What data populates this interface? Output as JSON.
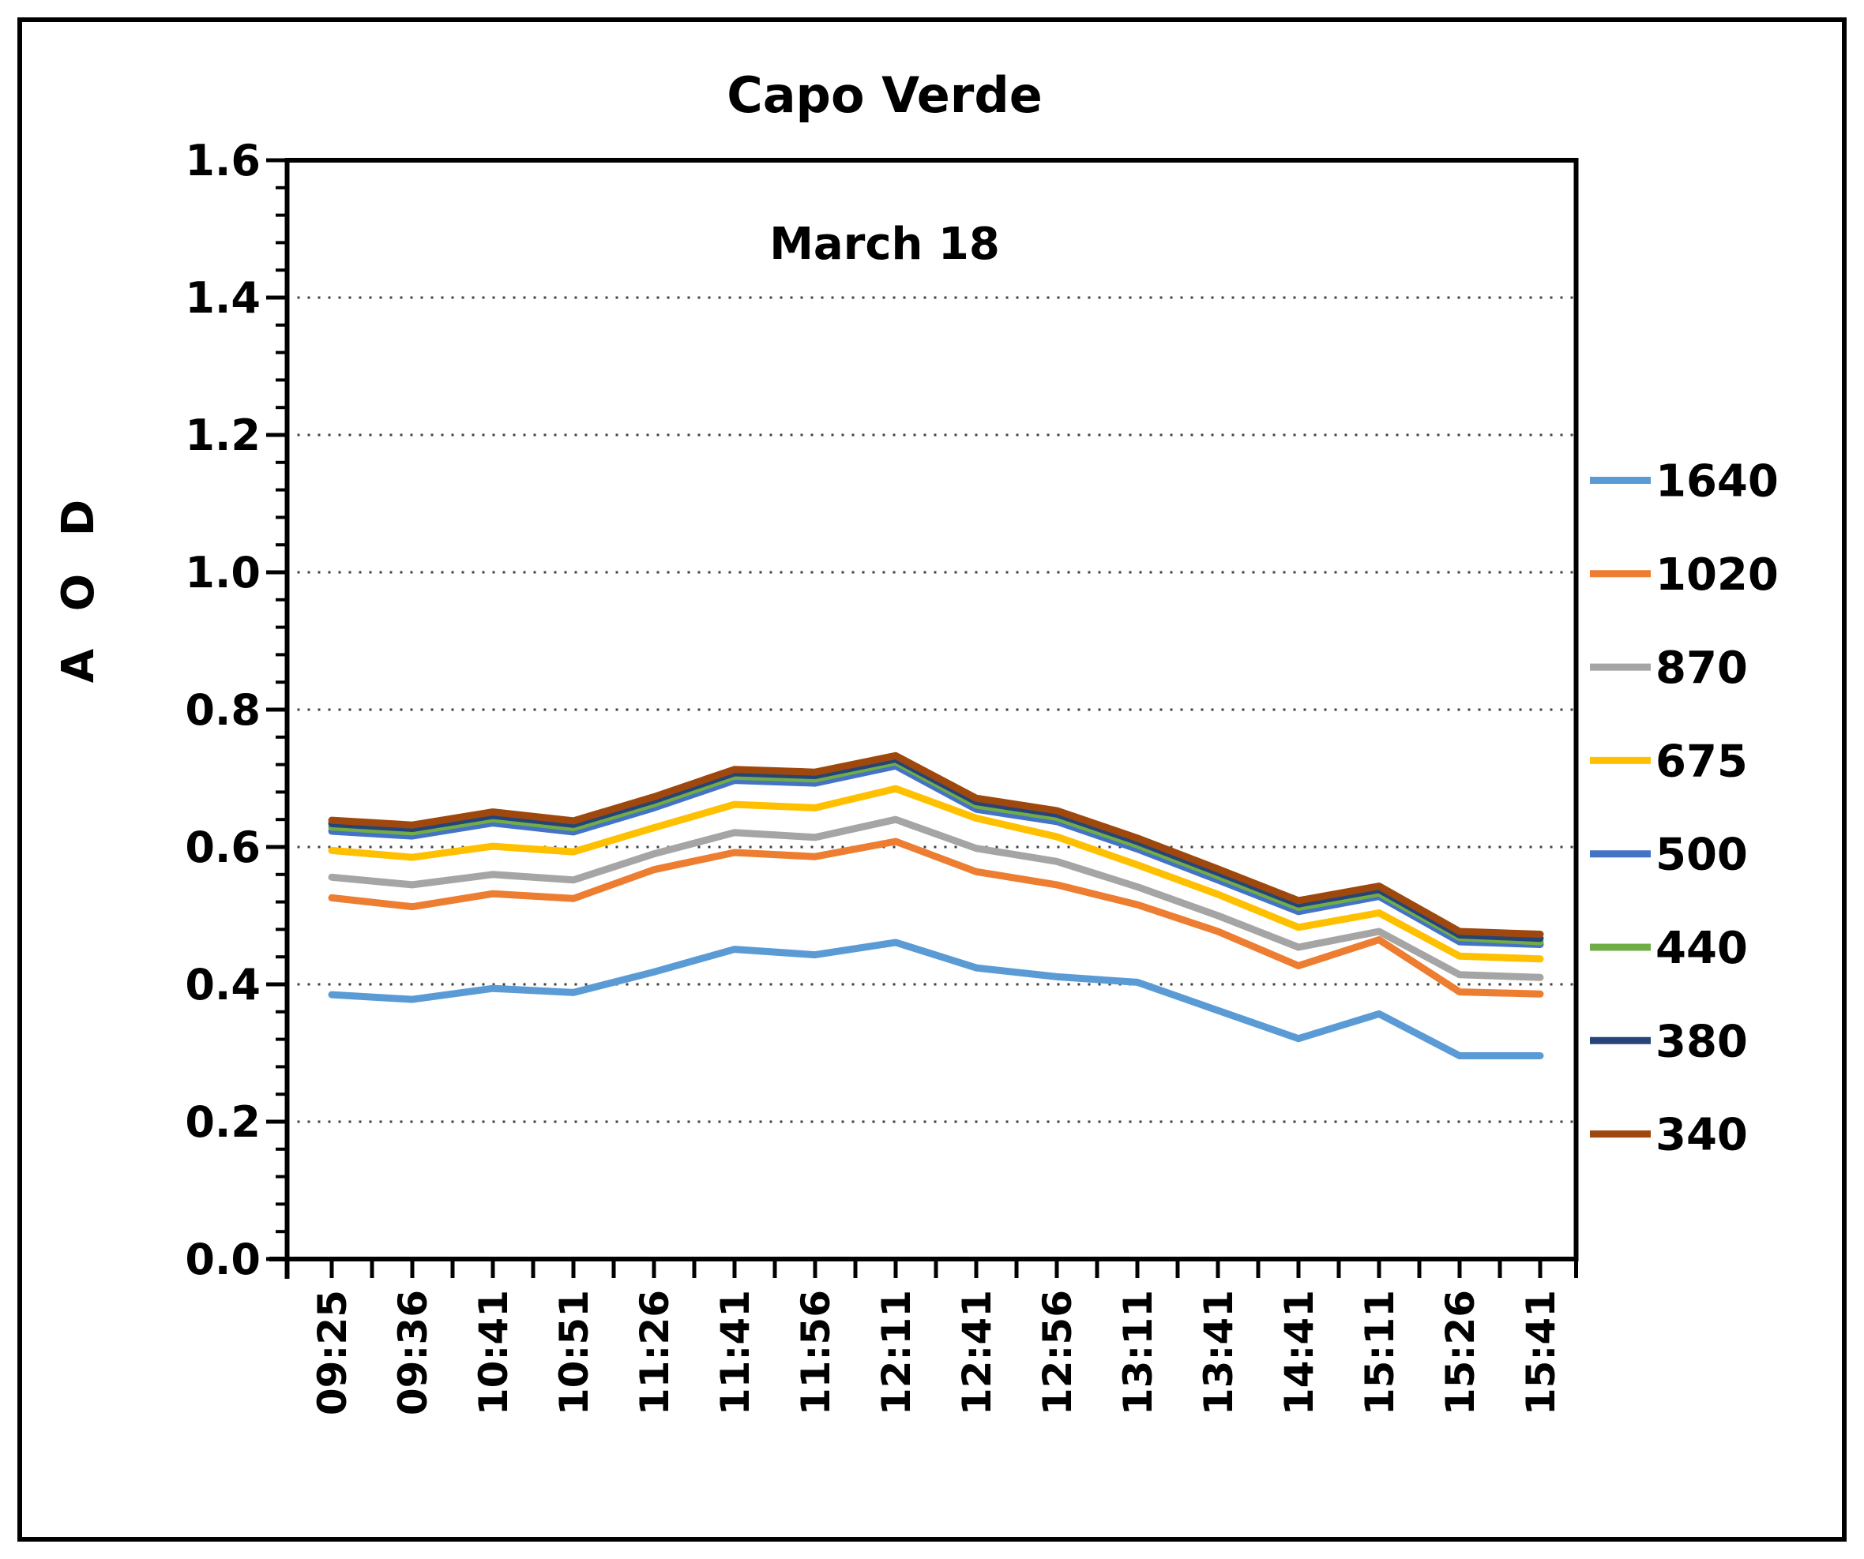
{
  "figure": {
    "title": "Capo Verde",
    "subtitle": "March 18",
    "y_axis_title": "A O D"
  },
  "chart_data": {
    "type": "line",
    "title": "Capo Verde",
    "subtitle": "March 18",
    "xlabel": "",
    "ylabel": "A O D",
    "ylim": [
      0.0,
      1.6
    ],
    "y_major_unit": 0.2,
    "y_minor_unit": 0.04,
    "y_tick_labels": [
      "0.0",
      "0.2",
      "0.4",
      "0.6",
      "0.8",
      "1.0",
      "1.2",
      "1.4",
      "1.6"
    ],
    "grid": "horizontal dotted lines at each 0.2",
    "legend_position": "right",
    "legend_entries": [
      "1640",
      "1020",
      "870",
      "675",
      "500",
      "440",
      "380",
      "340"
    ],
    "categories": [
      "09:25",
      "09:36",
      "10:41",
      "10:51",
      "11:26",
      "11:41",
      "11:56",
      "12:11",
      "12:41",
      "12:56",
      "13:11",
      "13:41",
      "14:41",
      "15:11",
      "15:26",
      "15:41"
    ],
    "series": [
      {
        "name": "1640",
        "color": "#5B9BD5",
        "values": [
          0.385,
          0.378,
          0.394,
          0.388,
          0.418,
          0.451,
          0.443,
          0.461,
          0.424,
          0.411,
          0.403,
          0.362,
          0.321,
          0.357,
          0.296,
          0.296
        ]
      },
      {
        "name": "1020",
        "color": "#ED7D31",
        "values": [
          0.526,
          0.513,
          0.532,
          0.525,
          0.567,
          0.592,
          0.586,
          0.608,
          0.564,
          0.545,
          0.516,
          0.477,
          0.427,
          0.465,
          0.389,
          0.386
        ]
      },
      {
        "name": "870",
        "color": "#A5A5A5",
        "values": [
          0.556,
          0.545,
          0.56,
          0.552,
          0.59,
          0.621,
          0.614,
          0.64,
          0.598,
          0.579,
          0.542,
          0.5,
          0.454,
          0.477,
          0.414,
          0.41
        ]
      },
      {
        "name": "675",
        "color": "#FFC000",
        "values": [
          0.595,
          0.585,
          0.601,
          0.593,
          0.628,
          0.662,
          0.657,
          0.685,
          0.642,
          0.615,
          0.574,
          0.531,
          0.483,
          0.504,
          0.441,
          0.437
        ]
      },
      {
        "name": "500",
        "color": "#4472C4",
        "values": [
          0.623,
          0.616,
          0.635,
          0.622,
          0.657,
          0.697,
          0.693,
          0.718,
          0.655,
          0.637,
          0.597,
          0.552,
          0.506,
          0.528,
          0.462,
          0.458
        ]
      },
      {
        "name": "440",
        "color": "#70AD47",
        "values": [
          0.629,
          0.622,
          0.641,
          0.628,
          0.663,
          0.703,
          0.699,
          0.724,
          0.661,
          0.643,
          0.603,
          0.558,
          0.512,
          0.533,
          0.468,
          0.462
        ]
      },
      {
        "name": "380",
        "color": "#264478",
        "values": [
          0.634,
          0.627,
          0.646,
          0.633,
          0.668,
          0.708,
          0.704,
          0.728,
          0.666,
          0.648,
          0.608,
          0.563,
          0.517,
          0.538,
          0.472,
          0.467
        ]
      },
      {
        "name": "340",
        "color": "#9E480E",
        "values": [
          0.639,
          0.632,
          0.651,
          0.638,
          0.673,
          0.713,
          0.709,
          0.733,
          0.671,
          0.653,
          0.613,
          0.568,
          0.522,
          0.543,
          0.477,
          0.473
        ]
      }
    ]
  },
  "style_colors": {
    "axis_and_border": "#000000",
    "gridline": "#404040",
    "background": "#ffffff"
  }
}
